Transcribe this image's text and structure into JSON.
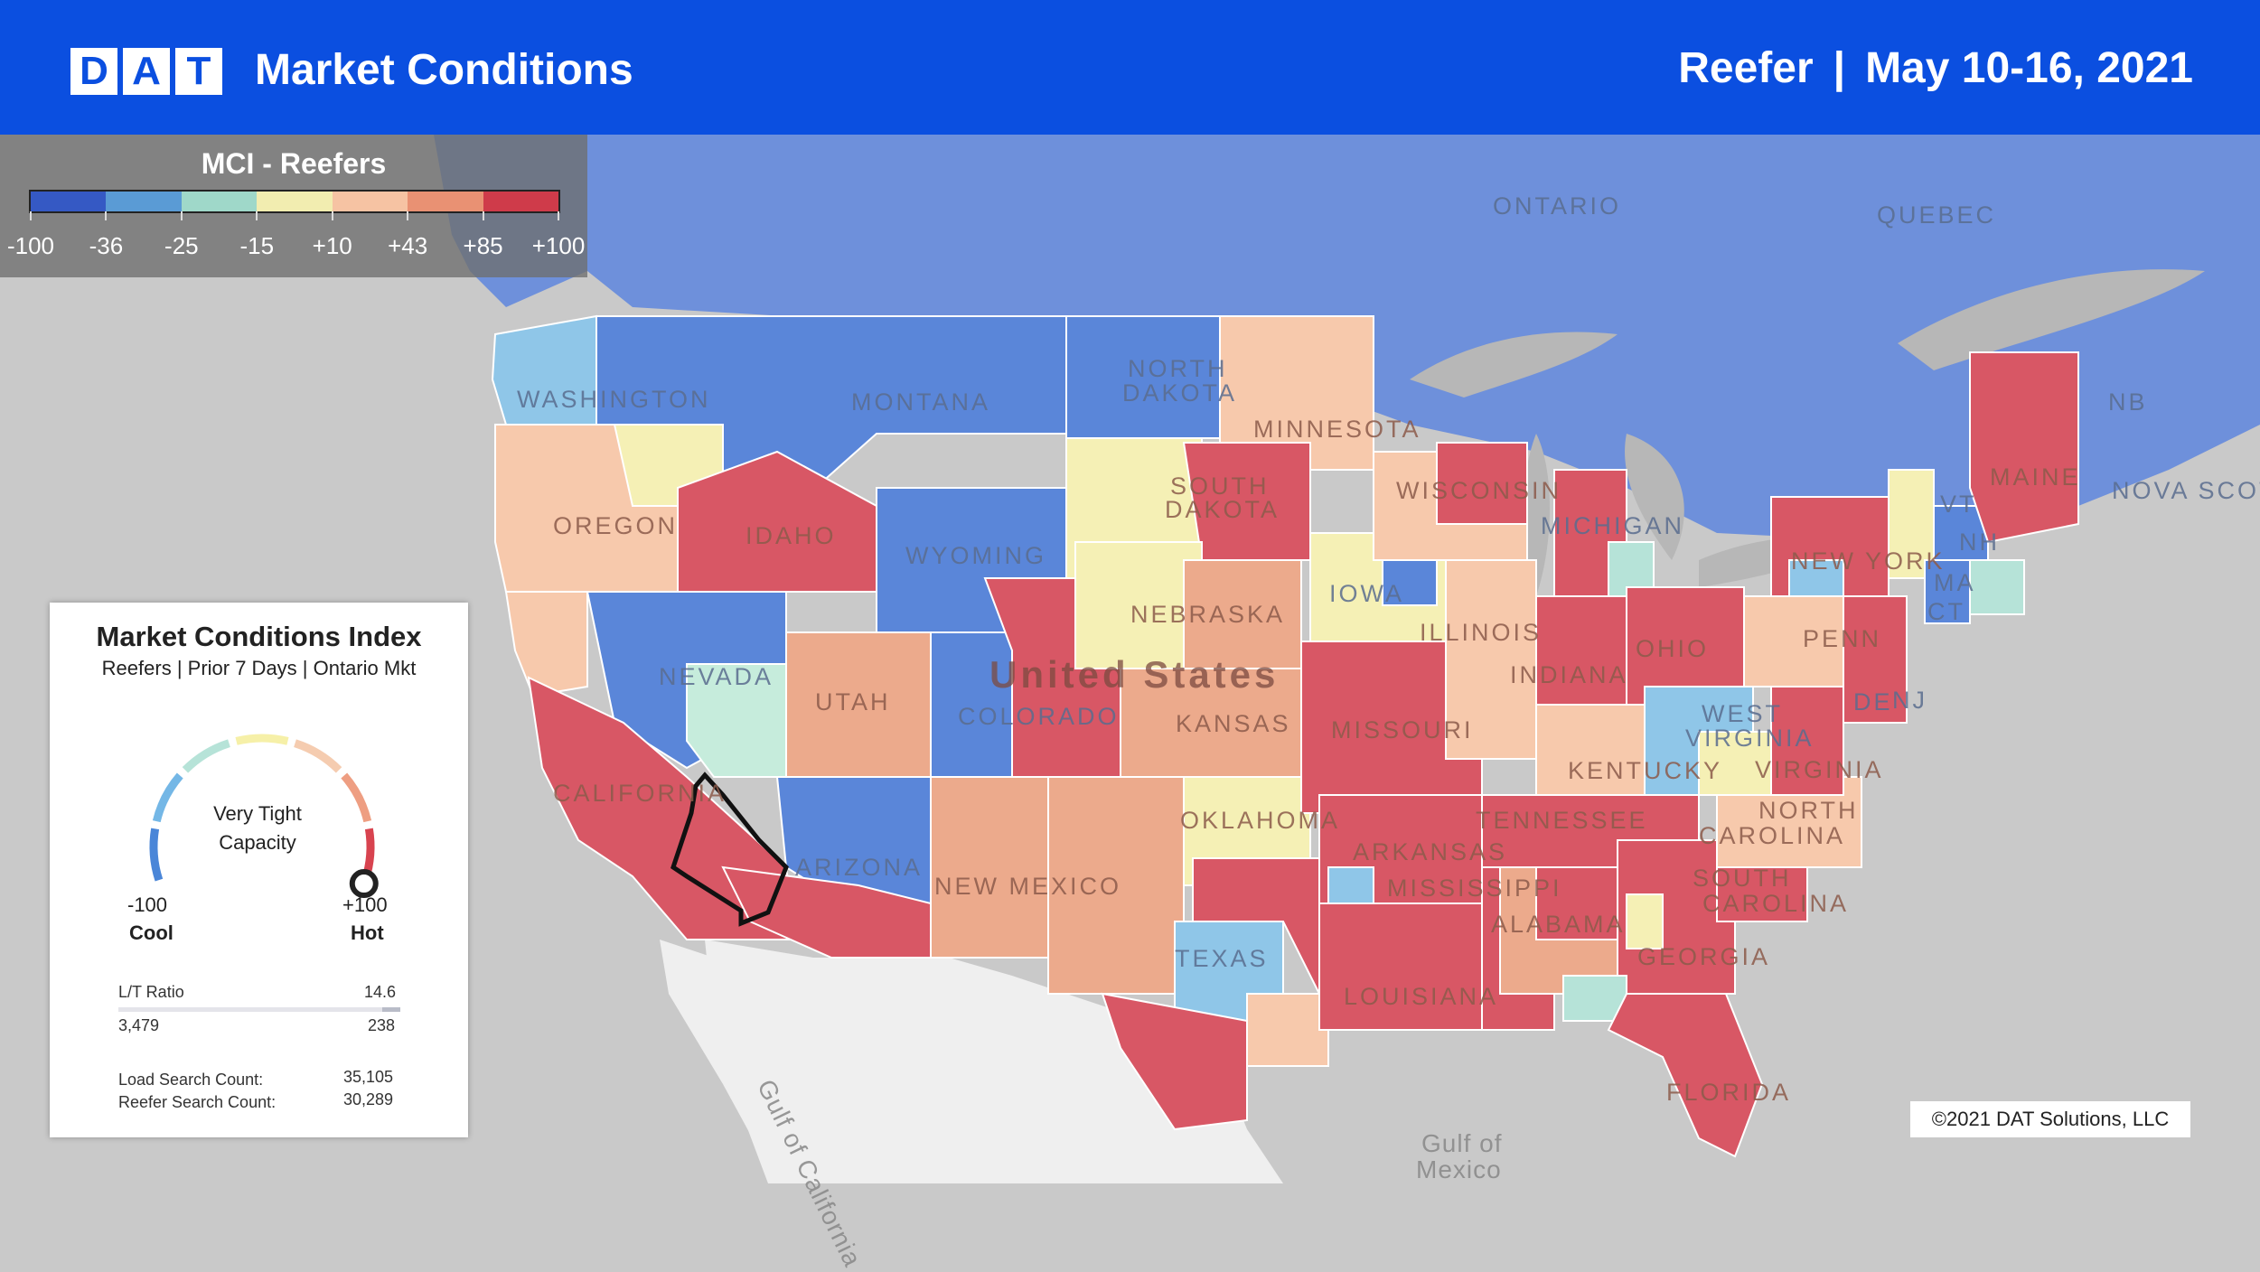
{
  "header": {
    "logo_letters": [
      "D",
      "A",
      "T"
    ],
    "title": "Market Conditions",
    "equipment": "Reefer",
    "separator": "|",
    "date_range": "May 10-16, 2021",
    "bg_color": "#0b4fe0"
  },
  "legend": {
    "title": "MCI - Reefers",
    "colors": [
      "#3559c4",
      "#5a9bd5",
      "#9fd8c9",
      "#f2edb0",
      "#f6c3a3",
      "#e99173",
      "#cf3b4a"
    ],
    "labels": [
      "-100",
      "-36",
      "-25",
      "-15",
      "+10",
      "+43",
      "+85",
      "+100"
    ]
  },
  "map_labels": {
    "ontario": "ONTARIO",
    "quebec": "QUEBEC",
    "washington": "WASHINGTON",
    "montana": "MONTANA",
    "north_dakota_1": "NORTH",
    "north_dakota_2": "DAKOTA",
    "minnesota": "MINNESOTA",
    "maine": "MAINE",
    "nb": "NB",
    "nova_scotia": "NOVA SCOT",
    "oregon": "OREGON",
    "idaho": "IDAHO",
    "south_dakota_1": "SOUTH",
    "south_dakota_2": "DAKOTA",
    "wisconsin": "WISCONSIN",
    "michigan": "MICHIGAN",
    "new_york": "NEW YORK",
    "vt": "VT",
    "nh": "NH",
    "ma": "MA",
    "ct": "CT",
    "wyoming": "WYOMING",
    "iowa": "IOWA",
    "nebraska": "NEBRASKA",
    "illinois": "ILLINOIS",
    "ohio": "OHIO",
    "penn": "PENN",
    "nj": "NJ",
    "de": "DE",
    "nevada": "NEVADA",
    "united_states": "United States",
    "utah": "UTAH",
    "colorado": "COLORADO",
    "kansas": "KANSAS",
    "missouri": "MISSOURI",
    "indiana": "INDIANA",
    "west_virginia_1": "WEST",
    "west_virginia_2": "VIRGINIA",
    "virginia": "VIRGINIA",
    "kentucky": "KENTUCKY",
    "california": "CALIFORNIA",
    "tennessee": "TENNESSEE",
    "north_carolina_1": "NORTH",
    "north_carolina_2": "CAROLINA",
    "oklahoma": "OKLAHOMA",
    "arkansas": "ARKANSAS",
    "arizona": "ARIZONA",
    "new_mexico": "NEW MEXICO",
    "south_carolina_1": "SOUTH",
    "south_carolina_2": "CAROLINA",
    "mississippi": "MISSISSIPPI",
    "alabama": "ALABAMA",
    "georgia": "GEORGIA",
    "texas": "TEXAS",
    "louisiana": "LOUISIANA",
    "florida": "FLORIDA",
    "gulf_of_california": "Gulf of California",
    "gulf_of_mexico_1": "Gulf of",
    "gulf_of_mexico_2": "Mexico"
  },
  "mci_card": {
    "title": "Market Conditions Index",
    "subtitle": "Reefers | Prior 7 Days | Ontario Mkt",
    "gauge_value": 100,
    "status_line1": "Very Tight",
    "status_line2": "Capacity",
    "min_value": "-100",
    "min_label": "Cool",
    "max_value": "+100",
    "max_label": "Hot",
    "lt_ratio_label": "L/T Ratio",
    "lt_ratio_value": "14.6",
    "loads": "3,479",
    "trucks": "238",
    "load_search_label": "Load Search Count:",
    "load_search_value": "35,105",
    "truck_search_label": "Reefer Search Count:",
    "truck_search_value": "30,289",
    "gauge_colors": [
      "#4a86d8",
      "#74b7e6",
      "#b6e3d8",
      "#f6f0a8",
      "#f5ccb0",
      "#ee9e82",
      "#d8434f"
    ]
  },
  "copyright": "©2021 DAT Solutions, LLC"
}
